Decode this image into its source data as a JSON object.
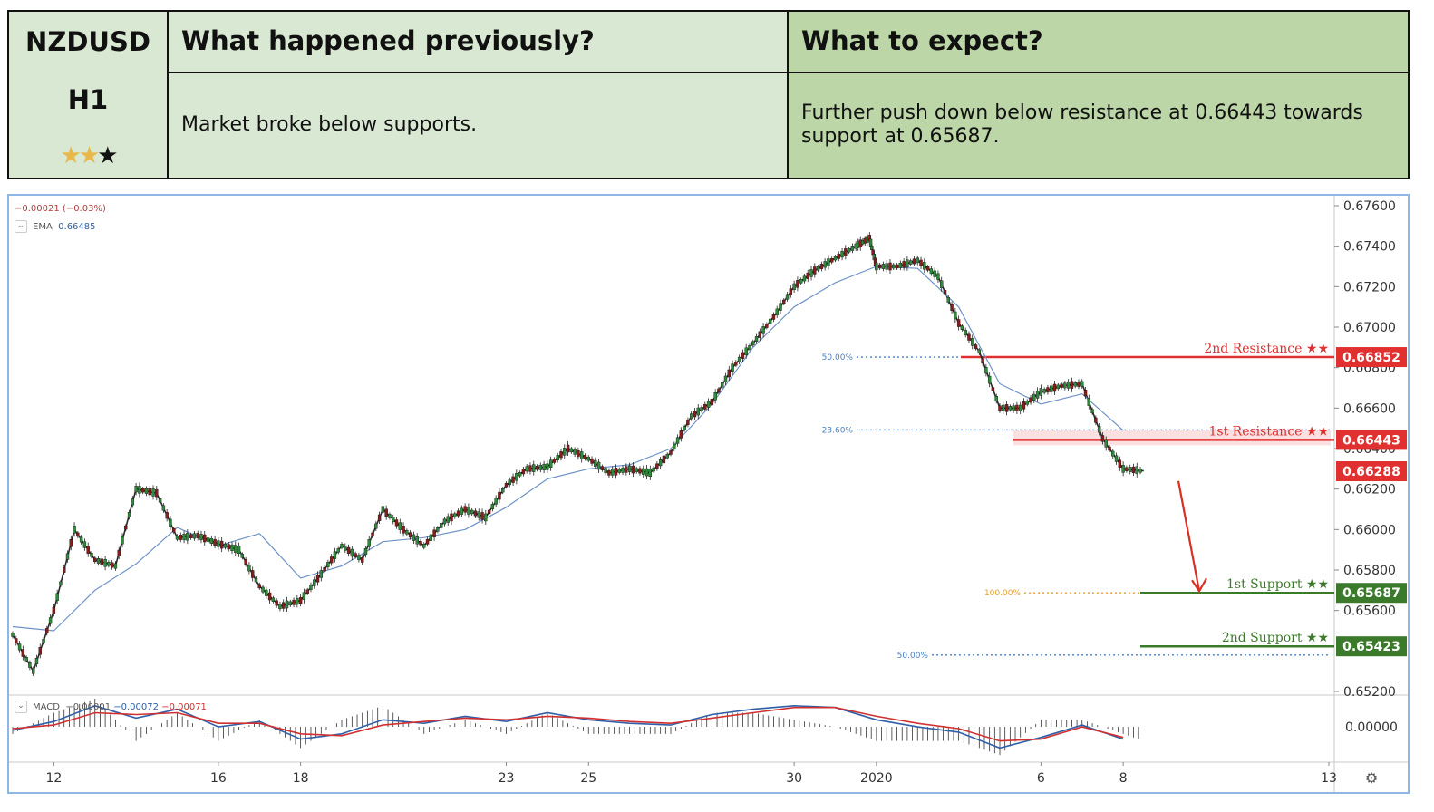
{
  "header": {
    "symbol": "NZDUSD",
    "timeframe": "H1",
    "rating_stars": 2,
    "rating_max": 3,
    "prev_title": "What happened previously?",
    "prev_text": "Market broke below supports.",
    "expect_title": "What to expect?",
    "expect_text": "Further push down below resistance at 0.66443 towards support at 0.65687.",
    "colors": {
      "pale_green": "#d9e8d2",
      "green": "#bcd6a8"
    }
  },
  "legend": {
    "change": "−0.00021 (−0.03%)",
    "ema_label": "EMA",
    "ema_value": "0.66485",
    "macd_label": "MACD",
    "macd_hist": "−0.00001",
    "macd_line": "−0.00072",
    "macd_signal": "−0.00071"
  },
  "chart_data": {
    "type": "line",
    "title": "",
    "xlabel": "",
    "ylabel": "",
    "ylim": [
      0.652,
      0.676
    ],
    "y_ticks": [
      "0.67600",
      "0.67400",
      "0.67200",
      "0.67000",
      "0.66800",
      "0.66600",
      "0.66400",
      "0.66200",
      "0.66000",
      "0.65800",
      "0.65600",
      "0.65200"
    ],
    "x_ticks": [
      "12",
      "16",
      "18",
      "23",
      "25",
      "30",
      "2020",
      "6",
      "8",
      "13"
    ],
    "x_tick_hours": [
      24,
      120,
      168,
      288,
      336,
      456,
      504,
      600,
      648,
      768
    ],
    "series": [
      {
        "name": "",
        "color": "#2a2a2a",
        "hours": [
          0,
          12,
          24,
          36,
          48,
          60,
          72,
          84,
          96,
          108,
          120,
          132,
          144,
          156,
          168,
          180,
          192,
          204,
          216,
          228,
          240,
          252,
          264,
          276,
          288,
          300,
          312,
          324,
          336,
          348,
          360,
          372,
          384,
          396,
          408,
          420,
          432,
          444,
          456,
          468,
          480,
          492,
          500,
          504,
          516,
          528,
          540,
          552,
          564,
          576,
          588,
          600,
          612,
          624,
          636,
          648,
          660
        ],
        "values": [
          0.6548,
          0.653,
          0.656,
          0.66,
          0.6585,
          0.6582,
          0.662,
          0.6618,
          0.6596,
          0.6597,
          0.6593,
          0.659,
          0.6572,
          0.6562,
          0.6565,
          0.6578,
          0.6592,
          0.6585,
          0.661,
          0.66,
          0.6592,
          0.6604,
          0.661,
          0.6606,
          0.6622,
          0.663,
          0.6631,
          0.664,
          0.6635,
          0.6628,
          0.663,
          0.6628,
          0.6638,
          0.6656,
          0.6663,
          0.668,
          0.6692,
          0.6705,
          0.672,
          0.6728,
          0.6734,
          0.674,
          0.6744,
          0.673,
          0.673,
          0.6733,
          0.6725,
          0.6702,
          0.6688,
          0.666,
          0.666,
          0.6668,
          0.6671,
          0.6672,
          0.6645,
          0.663,
          0.6629
        ]
      },
      {
        "name": "EMA",
        "color": "#6f93c7",
        "hours": [
          0,
          24,
          48,
          72,
          96,
          120,
          144,
          168,
          192,
          216,
          240,
          264,
          288,
          312,
          336,
          360,
          384,
          408,
          432,
          456,
          480,
          504,
          528,
          552,
          576,
          600,
          624,
          648
        ],
        "values": [
          0.6552,
          0.655,
          0.657,
          0.6583,
          0.6601,
          0.6592,
          0.6598,
          0.6576,
          0.6582,
          0.6594,
          0.6596,
          0.66,
          0.6611,
          0.6625,
          0.663,
          0.6632,
          0.664,
          0.6662,
          0.669,
          0.671,
          0.6722,
          0.673,
          0.6729,
          0.671,
          0.6672,
          0.6662,
          0.6667,
          0.6649
        ]
      }
    ],
    "levels": [
      {
        "label": "2nd Resistance ★★",
        "value": 0.66852,
        "price": "0.66852",
        "color": "#e03030"
      },
      {
        "label": "1st Resistance ★★",
        "value": 0.66443,
        "price": "0.66443",
        "color": "#e03030"
      },
      {
        "label": "1st Support ★★",
        "value": 0.65687,
        "price": "0.65687",
        "color": "#3a7a2a"
      },
      {
        "label": "2nd Support ★★",
        "value": 0.65423,
        "price": "0.65423",
        "color": "#3a7a2a"
      }
    ],
    "fib_levels": [
      {
        "label": "50.00%",
        "value": 0.66852,
        "color": "#4a7fc0"
      },
      {
        "label": "23.60%",
        "value": 0.66492,
        "color": "#4a7fc0"
      },
      {
        "label": "100.00%",
        "value": 0.65687,
        "color": "#e0a030"
      },
      {
        "label": "50.00%",
        "value": 0.6538,
        "color": "#4a7fc0"
      }
    ],
    "current_price": {
      "value": 0.66288,
      "price": "0.66288",
      "color": "#e03030"
    },
    "macd": {
      "hours": [
        0,
        24,
        48,
        72,
        96,
        120,
        144,
        168,
        192,
        216,
        240,
        264,
        288,
        312,
        336,
        360,
        384,
        408,
        432,
        456,
        480,
        504,
        528,
        552,
        576,
        600,
        624,
        648
      ],
      "macd": [
        -0.0002,
        0.0003,
        0.0012,
        0.0005,
        0.001,
        0.0,
        0.0003,
        -0.0007,
        -0.0004,
        0.0004,
        0.0002,
        0.0006,
        0.0003,
        0.0008,
        0.0004,
        0.0002,
        0.0001,
        0.0007,
        0.001,
        0.0012,
        0.0011,
        0.0004,
        0.0,
        -0.0003,
        -0.0012,
        -0.0006,
        0.0001,
        -0.0007
      ],
      "signal": [
        -0.0001,
        0.0001,
        0.0008,
        0.0007,
        0.0008,
        0.0002,
        0.0002,
        -0.0004,
        -0.0005,
        0.0001,
        0.0003,
        0.0005,
        0.0004,
        0.0006,
        0.0005,
        0.0003,
        0.0002,
        0.0005,
        0.0008,
        0.0011,
        0.0011,
        0.0006,
        0.0002,
        -0.0001,
        -0.0008,
        -0.0007,
        0.0,
        -0.0006
      ],
      "ylim": [
        -0.0018,
        0.0016
      ],
      "zero_label": "0.00000"
    },
    "grid": false,
    "settings_icon": "gear-icon"
  }
}
